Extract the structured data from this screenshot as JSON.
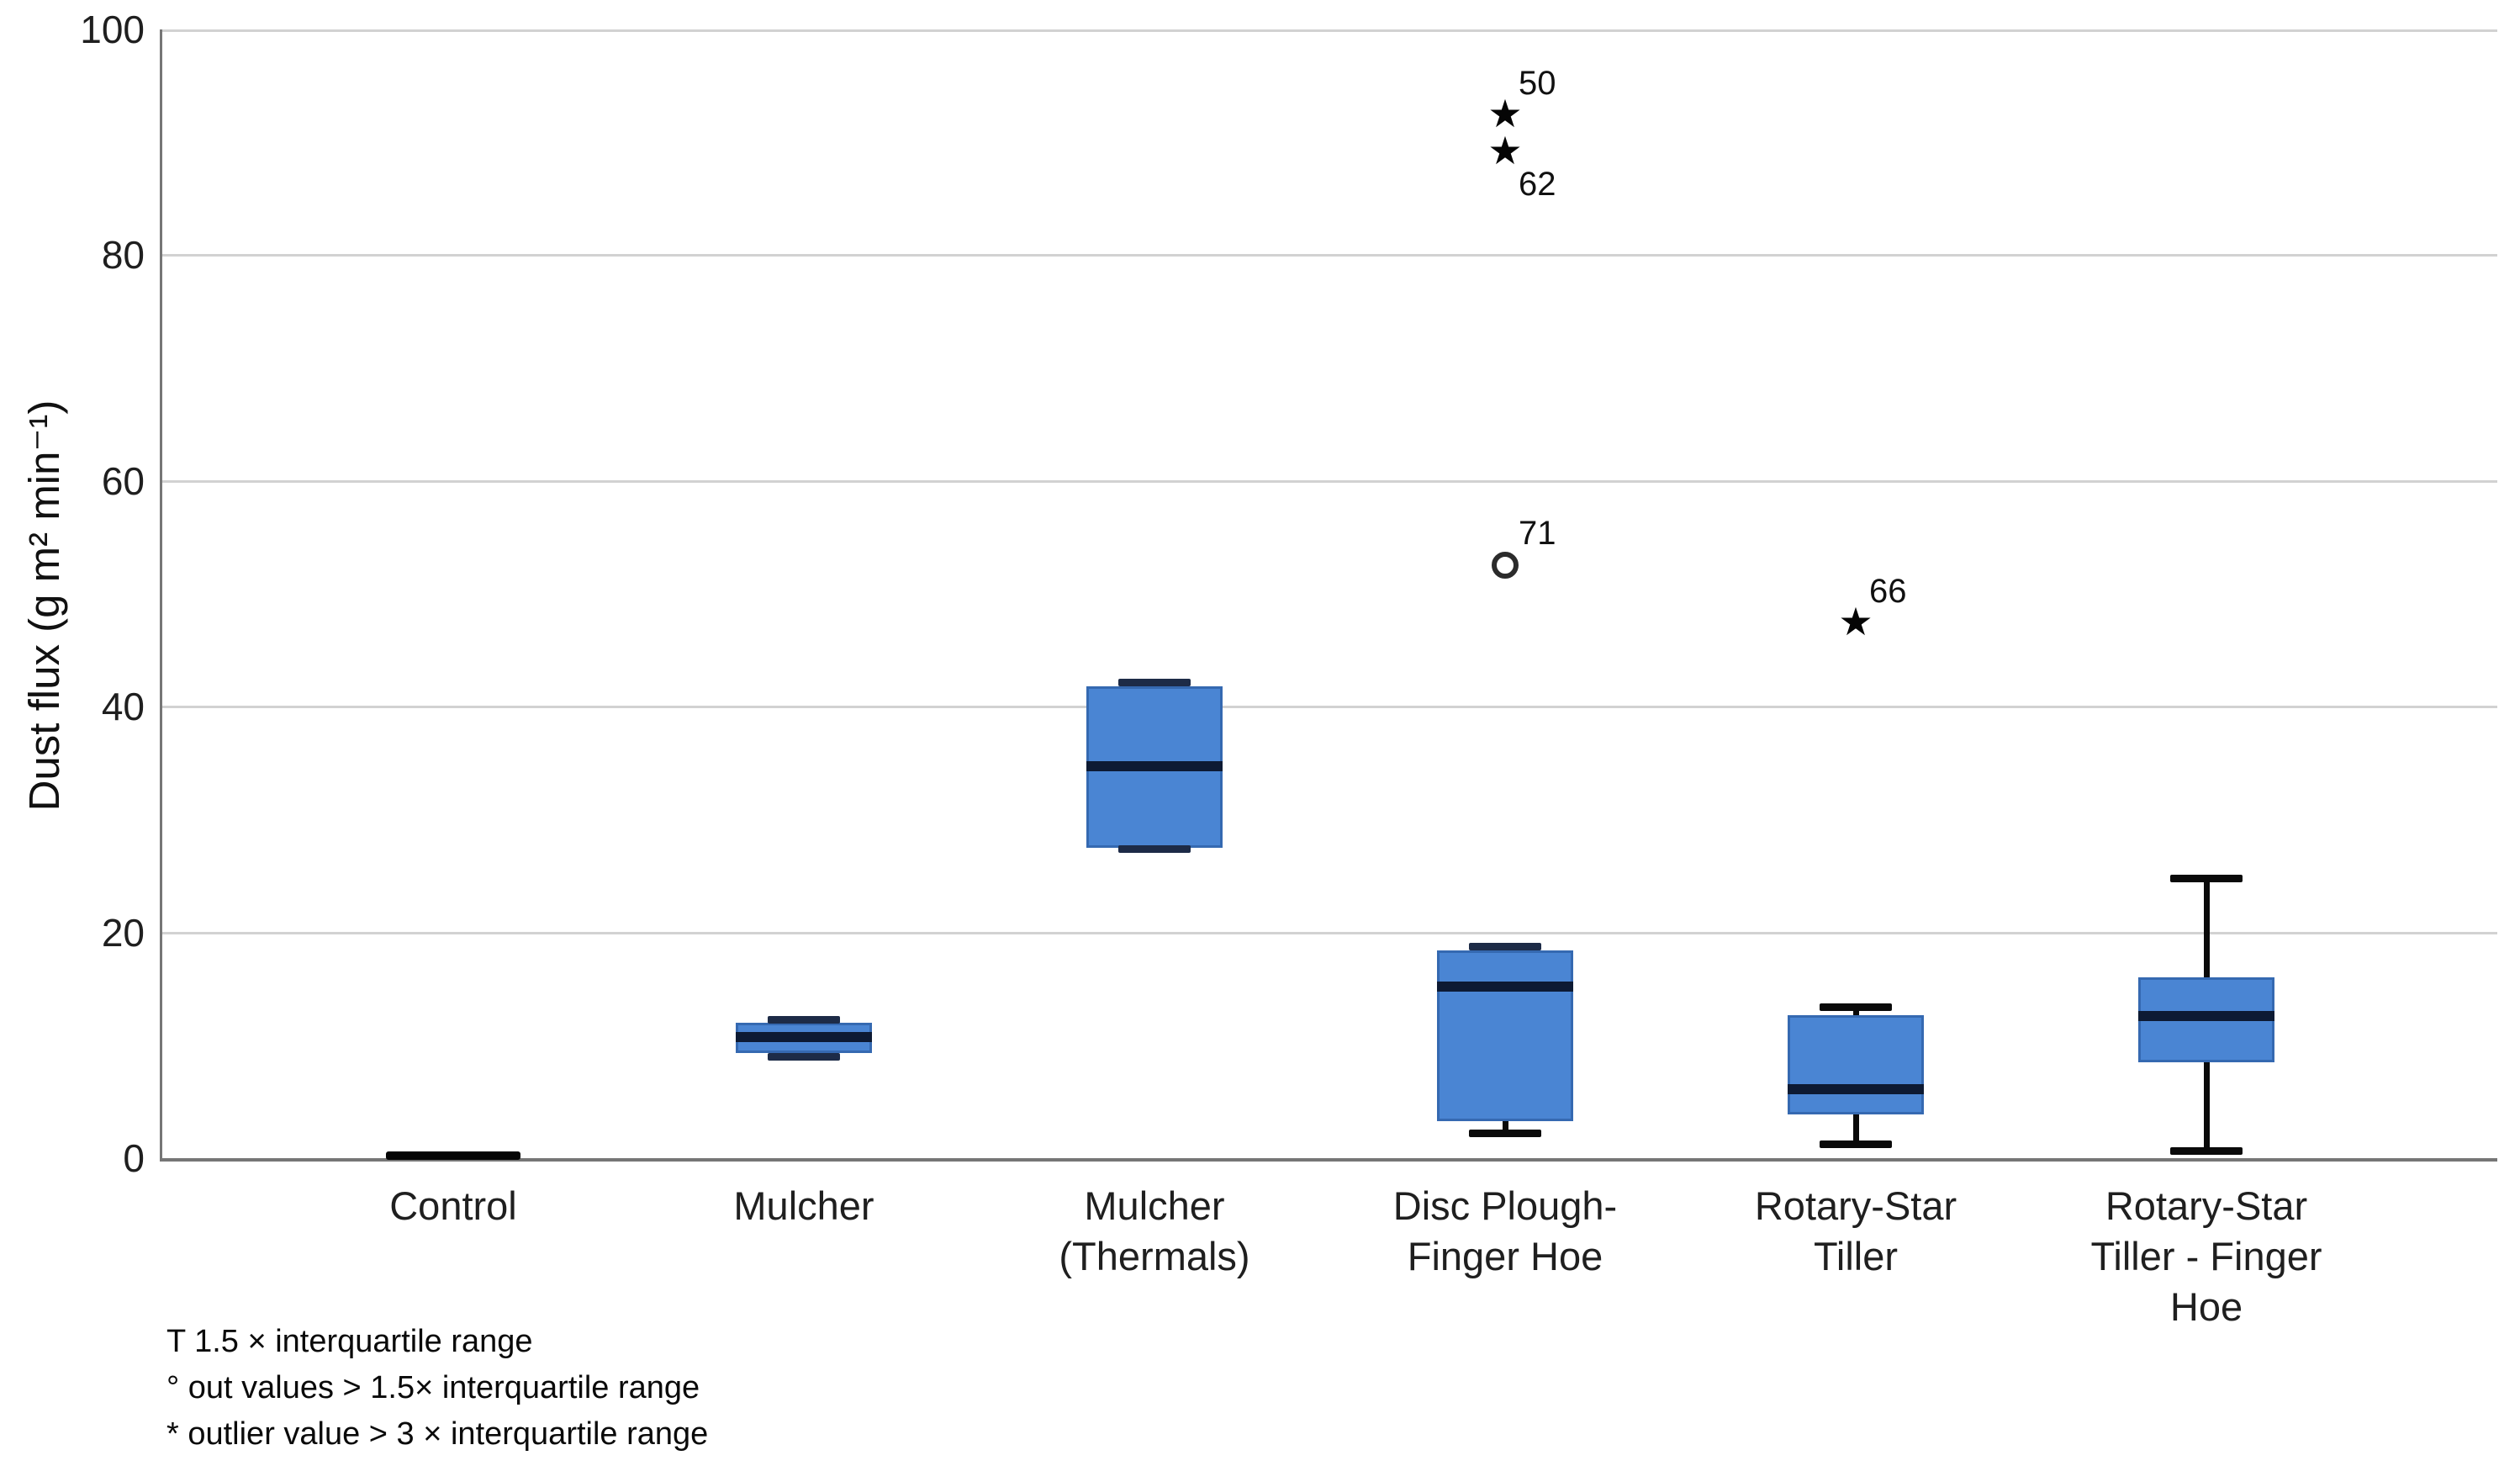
{
  "y_axis": {
    "label": "Dust flux (g m² min⁻¹)",
    "ticks": [
      0,
      20,
      40,
      60,
      80,
      100
    ],
    "min": 0,
    "max": 100
  },
  "footnotes": [
    "T 1.5 × interquartile range",
    "° out values > 1.5× interquartile range",
    "* outlier value > 3 × interquartile range"
  ],
  "colors": {
    "box_fill": "#4a85d3",
    "box_border": "#3569b1",
    "median": "#0d1a33",
    "cap_navy": "#1d2b47",
    "whisker_black": "#0a0a0a",
    "gridline": "#d2d2d2",
    "axis": "#767676",
    "text": "#1f1f1f"
  },
  "chart_data": {
    "type": "boxplot",
    "title": "",
    "xlabel": "",
    "ylabel": "Dust flux (g m² min⁻¹)",
    "ylim": [
      0,
      100
    ],
    "grid": "horizontal, every 20 units",
    "categories": [
      "Control",
      "Mulcher",
      "Mulcher (Thermals)",
      "Disc Plough-Finger Hoe",
      "Rotary-Star Tiller",
      "Rotary-Star Tiller - Finger Hoe"
    ],
    "series": [
      {
        "name": "Control",
        "label_lines": [
          "Control"
        ],
        "shape": "bar",
        "q1": 0,
        "median": 0.2,
        "q3": 0.4,
        "whisker_low": 0,
        "whisker_high": 0.4,
        "outliers": []
      },
      {
        "name": "Mulcher",
        "label_lines": [
          "Mulcher"
        ],
        "shape": "box",
        "q1": 9.3,
        "median": 10.7,
        "q3": 12.0,
        "whisker_low": 9.0,
        "whisker_high": 12.3,
        "cap_low_style": "navy",
        "cap_high_style": "navy",
        "line_low": false,
        "line_high": false,
        "outliers": []
      },
      {
        "name": "Mulcher (Thermals)",
        "label_lines": [
          "Mulcher",
          "(Thermals)"
        ],
        "shape": "box",
        "q1": 27.5,
        "median": 34.7,
        "q3": 41.8,
        "whisker_low": 27.4,
        "whisker_high": 42.2,
        "cap_low_style": "navy",
        "cap_high_style": "navy",
        "line_low": false,
        "line_high": false,
        "outliers": []
      },
      {
        "name": "Disc Plough-Finger Hoe",
        "label_lines": [
          "Disc Plough-",
          "Finger Hoe"
        ],
        "shape": "box",
        "q1": 3.3,
        "median": 15.2,
        "q3": 18.4,
        "whisker_low": 2.2,
        "whisker_high": 18.8,
        "cap_low_style": "black",
        "cap_high_style": "navy",
        "line_low": true,
        "line_high": false,
        "outliers": [
          {
            "marker": "circle",
            "value": 52.5,
            "case_label": "71",
            "label_side": "above"
          },
          {
            "marker": "star",
            "value": 92.4,
            "case_label": "50",
            "label_side": "above"
          },
          {
            "marker": "star",
            "value": 89.1,
            "case_label": "62",
            "label_side": "below"
          }
        ]
      },
      {
        "name": "Rotary-Star Tiller",
        "label_lines": [
          "Rotary-Star",
          "Tiller"
        ],
        "shape": "box",
        "q1": 3.9,
        "median": 6.1,
        "q3": 12.7,
        "whisker_low": 1.3,
        "whisker_high": 13.4,
        "cap_low_style": "black",
        "cap_high_style": "black",
        "line_low": true,
        "line_high": true,
        "outliers": [
          {
            "marker": "star",
            "value": 47.4,
            "case_label": "66",
            "label_side": "above"
          }
        ]
      },
      {
        "name": "Rotary-Star Tiller - Finger Hoe",
        "label_lines": [
          "Rotary-Star",
          "Tiller - Finger",
          "Hoe"
        ],
        "shape": "box",
        "q1": 8.5,
        "median": 12.6,
        "q3": 16.0,
        "whisker_low": 0.7,
        "whisker_high": 24.8,
        "cap_low_style": "black",
        "cap_high_style": "black",
        "line_low": true,
        "line_high": true,
        "outliers": []
      }
    ],
    "legend_markers": {
      "whisker_T": "1.5 × interquartile range",
      "circle": "out values > 1.5× interquartile range",
      "star": "outlier value > 3 × interquartile range"
    }
  }
}
